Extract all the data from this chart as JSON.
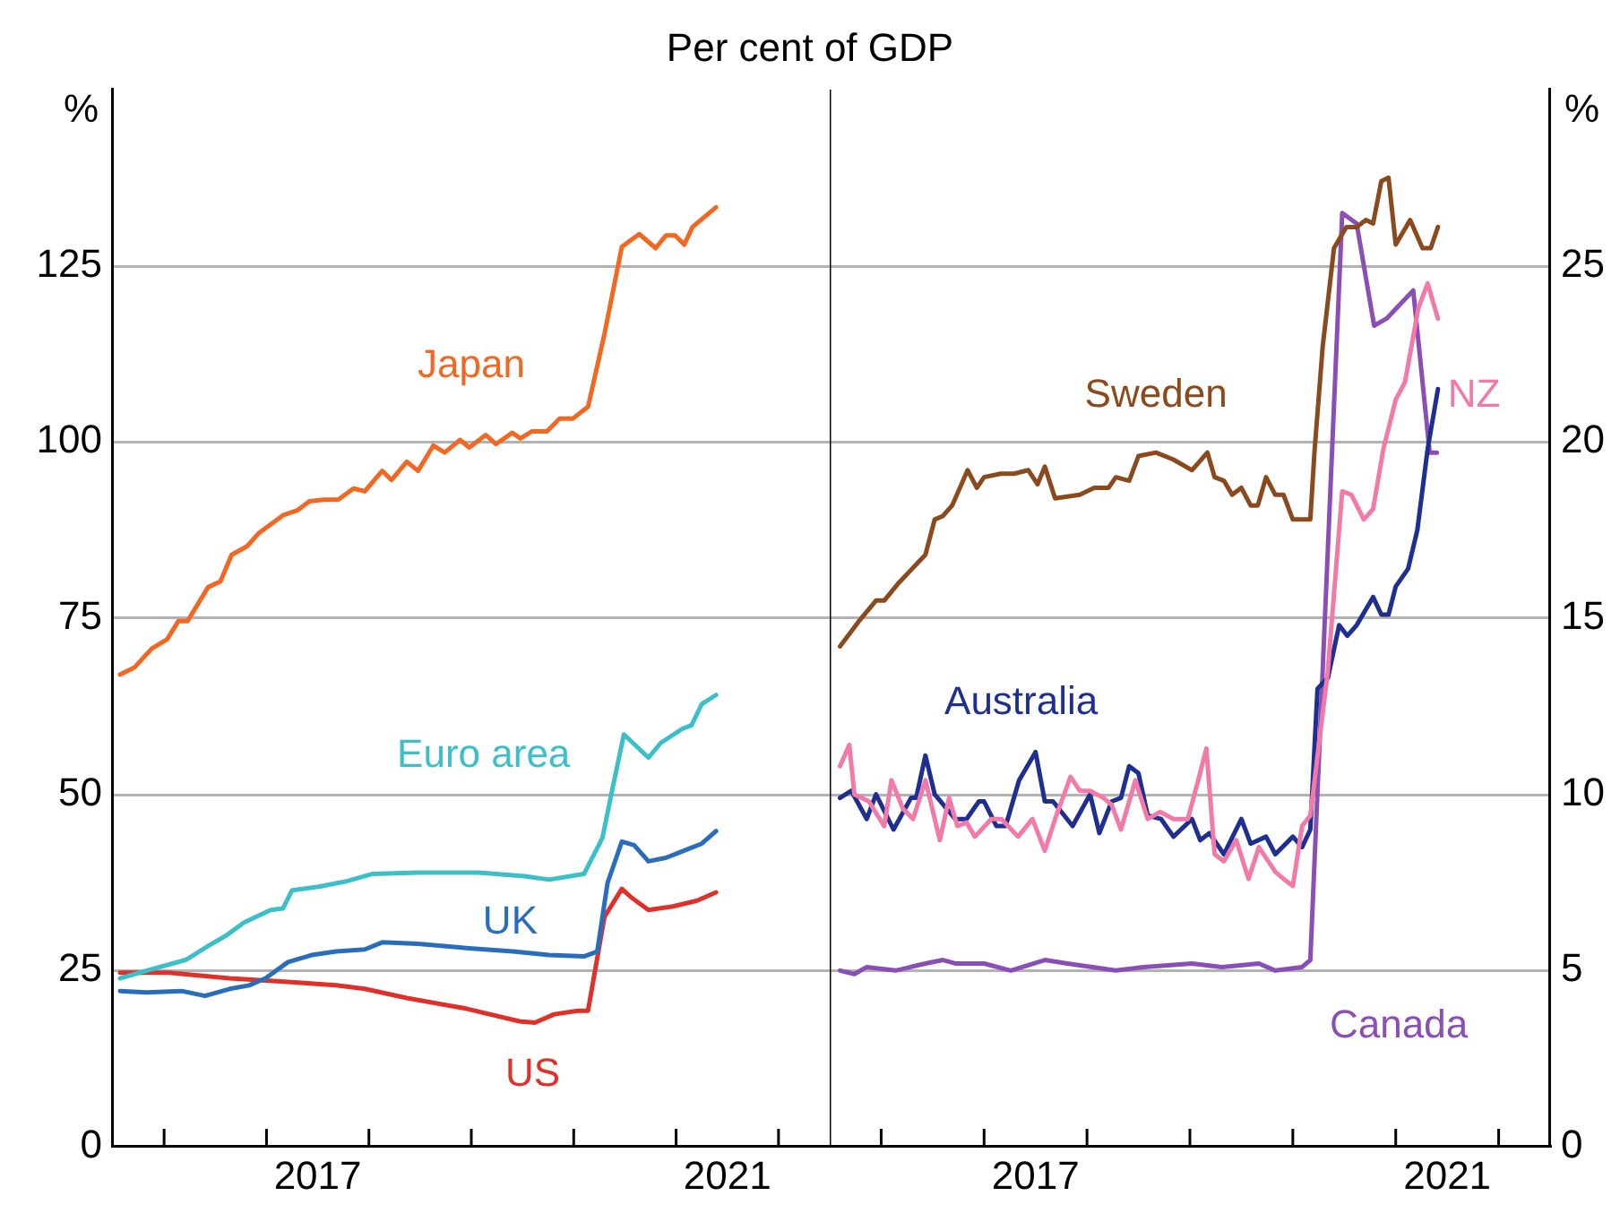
{
  "chart_data": [
    {
      "type": "line",
      "title": "Per cent of GDP",
      "ylabel": "%",
      "xlim": [
        2015.5,
        2022.5
      ],
      "ylim": [
        0,
        150
      ],
      "yticks": [
        0,
        25,
        50,
        75,
        100,
        125
      ],
      "xticks": [
        {
          "value": 2016,
          "label": null
        },
        {
          "value": 2017,
          "label": null
        },
        {
          "value": 2017.5,
          "label": "2017"
        },
        {
          "value": 2018,
          "label": null
        },
        {
          "value": 2019,
          "label": null
        },
        {
          "value": 2020,
          "label": null
        },
        {
          "value": 2021,
          "label": null
        },
        {
          "value": 2021.5,
          "label": "2021"
        },
        {
          "value": 2022,
          "label": null
        }
      ],
      "grid": "y",
      "legend": false,
      "marker": "none",
      "line_style": "solid",
      "series": [
        {
          "name": "Japan",
          "color": "#f26722",
          "x": [
            2015.57,
            2015.71,
            2015.88,
            2016.03,
            2016.14,
            2016.23,
            2016.43,
            2016.55,
            2016.66,
            2016.81,
            2016.92,
            2017.16,
            2017.3,
            2017.42,
            2017.56,
            2017.7,
            2017.85,
            2017.96,
            2018.13,
            2018.22,
            2018.37,
            2018.48,
            2018.63,
            2018.74,
            2018.89,
            2018.98,
            2019.14,
            2019.24,
            2019.4,
            2019.48,
            2019.59,
            2019.74,
            2019.86,
            2019.99,
            2020.14,
            2020.3,
            2020.47,
            2020.64,
            2020.8,
            2020.9,
            2020.99,
            2021.08,
            2021.16,
            2021.39
          ],
          "values": [
            67,
            68,
            70.7,
            72,
            74.6,
            74.6,
            79.4,
            80.2,
            84,
            85.2,
            87,
            89.6,
            90.3,
            91.6,
            91.8,
            91.8,
            93.4,
            93,
            95.9,
            94.6,
            97.2,
            95.9,
            99.5,
            98.5,
            100.3,
            99.2,
            101,
            99.7,
            101.3,
            100.5,
            101.5,
            101.5,
            103.3,
            103.3,
            105,
            115.3,
            127.7,
            129.5,
            127.5,
            129.3,
            129.3,
            128,
            130.5,
            133.3
          ]
        },
        {
          "name": "Euro area",
          "color": "#3cbfc8",
          "x": [
            2015.57,
            2015.83,
            2016.21,
            2016.43,
            2016.61,
            2016.78,
            2017.04,
            2017.16,
            2017.25,
            2017.51,
            2017.79,
            2018.03,
            2018.48,
            2019.07,
            2019.52,
            2019.76,
            2020.1,
            2020.28,
            2020.38,
            2020.49,
            2020.73,
            2020.85,
            2021.06,
            2021.15,
            2021.25,
            2021.39
          ],
          "values": [
            23.9,
            25,
            26.5,
            28.5,
            30,
            31.8,
            33.6,
            33.8,
            36.4,
            36.9,
            37.7,
            38.7,
            38.9,
            38.9,
            38.4,
            37.9,
            38.7,
            43.8,
            50.9,
            58.5,
            55.2,
            57.3,
            59.3,
            59.8,
            62.8,
            64.1
          ]
        },
        {
          "name": "UK",
          "color": "#2a6ebb",
          "x": [
            2015.57,
            2015.83,
            2016.17,
            2016.4,
            2016.64,
            2016.83,
            2016.99,
            2017.21,
            2017.44,
            2017.68,
            2017.96,
            2018.13,
            2018.48,
            2018.95,
            2019.41,
            2019.76,
            2020.1,
            2020.23,
            2020.33,
            2020.47,
            2020.59,
            2020.73,
            2020.9,
            2021.25,
            2021.39
          ],
          "values": [
            22.1,
            21.9,
            22.1,
            21.4,
            22.4,
            22.9,
            23.9,
            26.2,
            27.2,
            27.7,
            28,
            29,
            28.8,
            28.2,
            27.7,
            27.2,
            27,
            27.7,
            37.4,
            43.3,
            42.8,
            40.5,
            41,
            43,
            44.8
          ]
        },
        {
          "name": "US",
          "color": "#e0302a",
          "x": [
            2015.57,
            2016.05,
            2016.64,
            2017.21,
            2017.68,
            2017.96,
            2018.37,
            2018.95,
            2019.47,
            2019.62,
            2019.81,
            2020.04,
            2020.14,
            2020.3,
            2020.47,
            2020.56,
            2020.73,
            2020.97,
            2021.2,
            2021.39
          ],
          "values": [
            24.7,
            24.7,
            23.9,
            23.4,
            22.9,
            22.4,
            21.1,
            19.6,
            17.8,
            17.6,
            18.8,
            19.3,
            19.3,
            32.6,
            36.6,
            35.4,
            33.6,
            34.1,
            34.9,
            36.1
          ]
        }
      ]
    },
    {
      "type": "line",
      "ylabel": "%",
      "xlim": [
        2015.5,
        2022.5
      ],
      "ylim": [
        0,
        30
      ],
      "yticks": [
        0,
        5,
        10,
        15,
        20,
        25
      ],
      "xticks": [
        {
          "value": 2016,
          "label": null
        },
        {
          "value": 2017,
          "label": null
        },
        {
          "value": 2017.5,
          "label": "2017"
        },
        {
          "value": 2018,
          "label": null
        },
        {
          "value": 2019,
          "label": null
        },
        {
          "value": 2020,
          "label": null
        },
        {
          "value": 2021,
          "label": null
        },
        {
          "value": 2021.5,
          "label": "2021"
        },
        {
          "value": 2022,
          "label": null
        }
      ],
      "grid": "y",
      "legend": false,
      "marker": "none",
      "line_style": "solid",
      "series": [
        {
          "name": "Sweden",
          "color": "#8b4a1e",
          "x": [
            2015.6,
            2015.78,
            2015.95,
            2016.03,
            2016.17,
            2016.43,
            2016.52,
            2016.6,
            2016.69,
            2016.84,
            2016.93,
            2017.0,
            2017.16,
            2017.29,
            2017.43,
            2017.52,
            2017.59,
            2017.69,
            2017.93,
            2018.07,
            2018.21,
            2018.28,
            2018.41,
            2018.5,
            2018.67,
            2018.84,
            2019.02,
            2019.17,
            2019.24,
            2019.33,
            2019.41,
            2019.5,
            2019.59,
            2019.66,
            2019.74,
            2019.83,
            2019.91,
            2020.0,
            2020.17,
            2020.21,
            2020.29,
            2020.4,
            2020.52,
            2020.62,
            2020.71,
            2020.78,
            2020.86,
            2020.93,
            2021.0,
            2021.14,
            2021.26,
            2021.34,
            2021.41
          ],
          "values": [
            14.2,
            14.9,
            15.5,
            15.5,
            16.0,
            16.8,
            17.8,
            17.9,
            18.2,
            19.2,
            18.7,
            19.0,
            19.1,
            19.1,
            19.2,
            18.8,
            19.3,
            18.4,
            18.5,
            18.7,
            18.7,
            19.0,
            18.9,
            19.6,
            19.7,
            19.5,
            19.2,
            19.7,
            19.0,
            18.9,
            18.5,
            18.7,
            18.2,
            18.2,
            19.0,
            18.5,
            18.5,
            17.8,
            17.8,
            19.7,
            22.7,
            25.5,
            26.1,
            26.1,
            26.3,
            26.2,
            27.4,
            27.5,
            25.6,
            26.3,
            25.5,
            25.5,
            26.1
          ]
        },
        {
          "name": "NZ",
          "color": "#f27aa8",
          "x": [
            2015.6,
            2015.69,
            2015.74,
            2015.88,
            2016.03,
            2016.1,
            2016.21,
            2016.31,
            2016.43,
            2016.57,
            2016.66,
            2016.74,
            2016.83,
            2016.91,
            2017.07,
            2017.17,
            2017.33,
            2017.47,
            2017.59,
            2017.69,
            2017.84,
            2017.93,
            2018.03,
            2018.16,
            2018.24,
            2018.33,
            2018.47,
            2018.59,
            2018.71,
            2018.84,
            2018.98,
            2019.09,
            2019.16,
            2019.24,
            2019.33,
            2019.45,
            2019.57,
            2019.67,
            2019.83,
            2019.91,
            2020.0,
            2020.09,
            2020.17,
            2020.34,
            2020.48,
            2020.57,
            2020.69,
            2020.78,
            2020.88,
            2021.0,
            2021.09,
            2021.22,
            2021.31,
            2021.41
          ],
          "values": [
            10.8,
            11.4,
            10.0,
            9.8,
            9.1,
            10.4,
            9.6,
            9.3,
            10.4,
            8.7,
            9.9,
            9.1,
            9.2,
            8.8,
            9.3,
            9.3,
            8.8,
            9.3,
            8.4,
            9.3,
            10.5,
            10.1,
            10.1,
            9.9,
            9.7,
            9.0,
            10.4,
            9.3,
            9.5,
            9.3,
            9.3,
            10.5,
            11.3,
            8.3,
            8.1,
            8.7,
            7.6,
            8.5,
            7.8,
            7.6,
            7.4,
            9.1,
            9.4,
            13.5,
            18.6,
            18.5,
            17.8,
            18.1,
            19.8,
            21.2,
            21.7,
            23.8,
            24.5,
            23.5
          ]
        },
        {
          "name": "Australia",
          "color": "#1f2f8f",
          "x": [
            2015.6,
            2015.71,
            2015.86,
            2015.95,
            2016.12,
            2016.29,
            2016.34,
            2016.43,
            2016.52,
            2016.72,
            2016.83,
            2016.95,
            2017.0,
            2017.12,
            2017.21,
            2017.34,
            2017.5,
            2017.59,
            2017.67,
            2017.86,
            2018.03,
            2018.12,
            2018.24,
            2018.33,
            2018.41,
            2018.5,
            2018.59,
            2018.72,
            2018.84,
            2019.02,
            2019.1,
            2019.19,
            2019.33,
            2019.5,
            2019.59,
            2019.74,
            2019.83,
            2020.0,
            2020.09,
            2020.17,
            2020.24,
            2020.34,
            2020.45,
            2020.53,
            2020.62,
            2020.78,
            2020.86,
            2020.93,
            2021.0,
            2021.12,
            2021.21,
            2021.31,
            2021.41
          ],
          "values": [
            9.9,
            10.1,
            9.3,
            10.0,
            9.0,
            9.9,
            9.9,
            11.1,
            10.0,
            9.3,
            9.3,
            9.8,
            9.8,
            9.1,
            9.1,
            10.4,
            11.2,
            9.8,
            9.8,
            9.1,
            10.0,
            8.9,
            9.8,
            9.9,
            10.8,
            10.6,
            9.4,
            9.3,
            8.8,
            9.3,
            8.7,
            8.9,
            8.3,
            9.3,
            8.6,
            8.8,
            8.3,
            8.8,
            8.5,
            9.0,
            13.0,
            13.3,
            14.8,
            14.5,
            14.8,
            15.6,
            15.1,
            15.1,
            15.9,
            16.4,
            17.5,
            19.8,
            21.5
          ]
        },
        {
          "name": "Canada",
          "color": "#8a4fb5",
          "x": [
            2015.6,
            2015.74,
            2015.86,
            2016.14,
            2016.43,
            2016.6,
            2016.72,
            2017.0,
            2017.26,
            2017.59,
            2017.81,
            2018.28,
            2018.55,
            2019.02,
            2019.31,
            2019.67,
            2019.83,
            2020.09,
            2020.17,
            2020.48,
            2020.62,
            2020.79,
            2020.91,
            2021.17,
            2021.33,
            2021.4
          ],
          "values": [
            5.0,
            4.9,
            5.1,
            5.0,
            5.2,
            5.3,
            5.2,
            5.2,
            5.0,
            5.3,
            5.2,
            5.0,
            5.1,
            5.2,
            5.1,
            5.2,
            5.0,
            5.1,
            5.3,
            26.5,
            26.2,
            23.3,
            23.5,
            24.3,
            19.7,
            19.7
          ]
        }
      ]
    }
  ]
}
